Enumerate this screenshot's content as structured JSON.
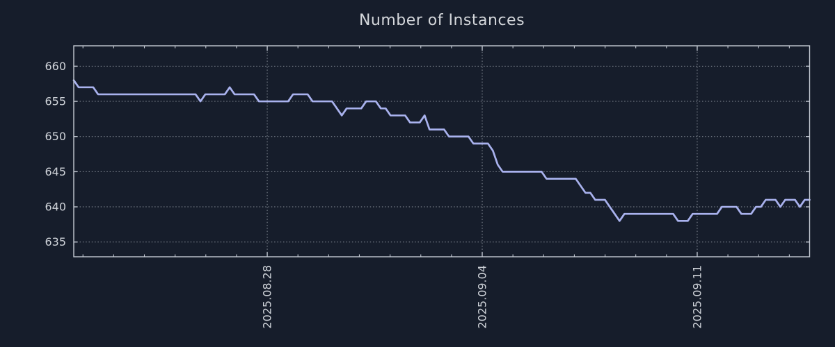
{
  "chart_data": {
    "type": "line",
    "title": "Number of Instances",
    "series": [
      {
        "name": "instances",
        "color": "#a9b2ee",
        "values": [
          658,
          657,
          657,
          657,
          657,
          656,
          656,
          656,
          656,
          656,
          656,
          656,
          656,
          656,
          656,
          656,
          656,
          656,
          656,
          656,
          656,
          656,
          656,
          656,
          656,
          656,
          655,
          656,
          656,
          656,
          656,
          656,
          657,
          656,
          656,
          656,
          656,
          656,
          655,
          655,
          655,
          655,
          655,
          655,
          655,
          656,
          656,
          656,
          656,
          655,
          655,
          655,
          655,
          655,
          654,
          653,
          654,
          654,
          654,
          654,
          655,
          655,
          655,
          654,
          654,
          653,
          653,
          653,
          653,
          652,
          652,
          652,
          653,
          651,
          651,
          651,
          651,
          650,
          650,
          650,
          650,
          650,
          649,
          649,
          649,
          649,
          648,
          646,
          645,
          645,
          645,
          645,
          645,
          645,
          645,
          645,
          645,
          644,
          644,
          644,
          644,
          644,
          644,
          644,
          643,
          642,
          642,
          641,
          641,
          641,
          640,
          639,
          638,
          639,
          639,
          639,
          639,
          639,
          639,
          639,
          639,
          639,
          639,
          639,
          638,
          638,
          638,
          639,
          639,
          639,
          639,
          639,
          639,
          640,
          640,
          640,
          640,
          639,
          639,
          639,
          640,
          640,
          641,
          641,
          641,
          640,
          641,
          641,
          641,
          640,
          641,
          641
        ]
      }
    ],
    "x_axis": {
      "tick_labels": [
        "2025.08.28",
        "2025.09.04",
        "2025.09.11"
      ],
      "span_days": 23.96,
      "minor_first_day": 0.3,
      "minor_tick_interval_days": 1,
      "minor_tick_count": 24,
      "major_tick_indices": [
        6,
        13,
        20
      ]
    },
    "y_axis": {
      "min": 632.9,
      "max": 662.9,
      "ticks": [
        635,
        640,
        645,
        650,
        655,
        660
      ]
    },
    "grid": true,
    "legend": false,
    "colors": {
      "background": "#161d2b",
      "line": "#a9b2ee",
      "grid": "#a8aeb8",
      "spine": "#c3c9d3",
      "title_text": "#d4d7db",
      "tick_text": "#ced2d8"
    }
  }
}
